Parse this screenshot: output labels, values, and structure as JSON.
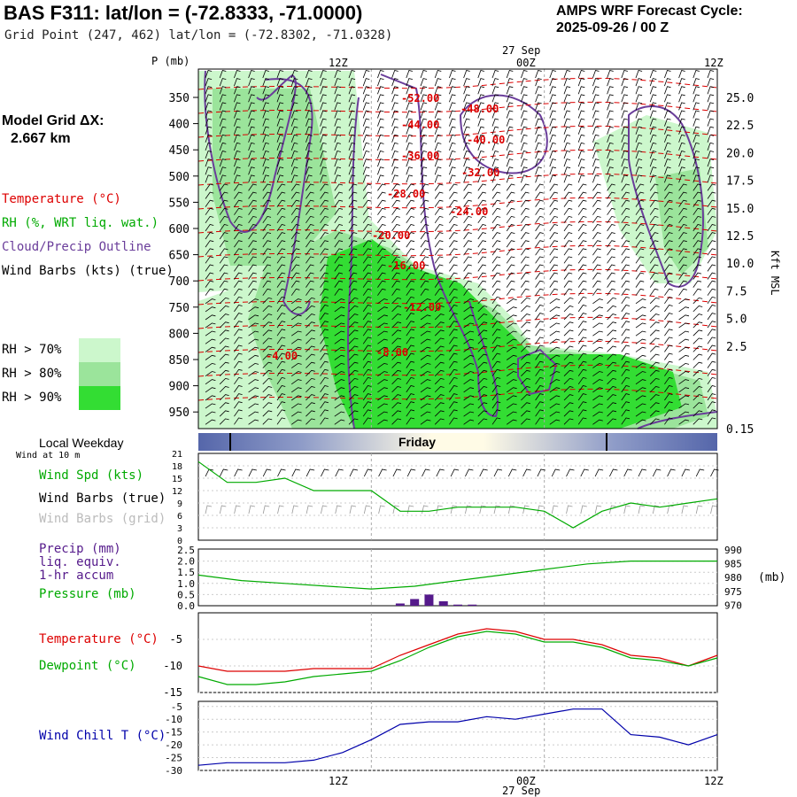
{
  "header": {
    "title": "BAS F311:  lat/lon = (-72.8333, -71.0000)",
    "subtitle": "Grid Point (247, 462) lat/lon = (-72.8302, -71.0328)",
    "forecast_line1": "AMPS WRF Forecast Cycle:",
    "forecast_line2": "2025-09-26 / 00  Z"
  },
  "legend": {
    "model_grid_line1": "Model Grid ΔX:",
    "model_grid_line2": "2.667 km",
    "temperature": "Temperature (°C)",
    "rh": "RH (%, WRT liq. wat.)",
    "cloud": "Cloud/Precip Outline",
    "wind_barbs": "Wind Barbs (kts) (true)",
    "rh70": "RH > 70%",
    "rh80": "RH > 80%",
    "rh90": "RH > 90%"
  },
  "colors": {
    "rh70": "#ccf7cc",
    "rh80": "#9be49b",
    "rh90": "#33dd33",
    "cloud": "#6a3d9a",
    "temp": "#dd0000",
    "green": "#00aa00",
    "purple": "#551a8b",
    "blue": "#0000aa",
    "grid_gray": "#aaaaaa"
  },
  "time_axis": {
    "date_label": "27 Sep",
    "ticks": [
      "12Z",
      "00Z",
      "12Z"
    ],
    "weekday_label": "Local Weekday",
    "weekday": "Friday"
  },
  "cross_section": {
    "pressure_label": "P (mb)",
    "pressure_ticks": [
      "350",
      "400",
      "450",
      "500",
      "550",
      "600",
      "650",
      "700",
      "750",
      "800",
      "850",
      "900",
      "950"
    ],
    "height_ticks": [
      "25.0",
      "22.5",
      "20.0",
      "17.5",
      "15.0",
      "12.5",
      "10.0",
      "7.5",
      "5.0",
      "2.5",
      "0.15"
    ],
    "height_label": "Kft MSL",
    "isotherms": [
      "-52.00",
      "-48.00",
      "-44.00",
      "-40.00",
      "-36.00",
      "-32.00",
      "-28.00",
      "-24.00",
      "-20.00",
      "-16.00",
      "-12.00",
      "-8.00",
      "-4.00"
    ]
  },
  "wind_panel": {
    "wind_at": "Wind at 10 m",
    "spd_label": "Wind Spd (kts)",
    "barbs_true": "Wind Barbs (true)",
    "barbs_grid": "Wind Barbs (grid)",
    "y_ticks": [
      "21",
      "18",
      "15",
      "12",
      "9",
      "6",
      "3",
      "0"
    ]
  },
  "precip_panel": {
    "precip_l1": "Precip (mm)",
    "precip_l2": "liq. equiv.",
    "precip_l3": "1-hr accum",
    "pressure": "Pressure (mb)",
    "left_ticks": [
      "2.5",
      "2.0",
      "1.5",
      "1.0",
      "0.5",
      "0.0"
    ],
    "right_ticks": [
      "990",
      "985",
      "980",
      "975",
      "970"
    ],
    "right_unit": "(mb)"
  },
  "temp_panel": {
    "temp_label": "Temperature (°C)",
    "dew_label": "Dewpoint (°C)",
    "y_ticks": [
      "-5",
      "-10",
      "-15"
    ]
  },
  "chill_panel": {
    "label": "Wind Chill T (°C)",
    "y_ticks": [
      "-5",
      "-10",
      "-15",
      "-20",
      "-25",
      "-30"
    ]
  },
  "chart_data": [
    {
      "type": "line",
      "name": "10 m wind speed",
      "x_hours": [
        0,
        2,
        4,
        6,
        8,
        10,
        12,
        14,
        16,
        18,
        20,
        22,
        24,
        26,
        28,
        30,
        32,
        34,
        36
      ],
      "values": [
        19,
        14,
        14,
        15,
        12,
        12,
        12,
        7,
        7,
        8,
        8,
        8,
        7,
        3,
        7,
        9,
        8,
        9,
        10
      ],
      "ylim": [
        0,
        21
      ]
    },
    {
      "type": "line",
      "name": "pressure",
      "x_hours": [
        0,
        3,
        6,
        9,
        12,
        15,
        18,
        21,
        24,
        27,
        30,
        33,
        36
      ],
      "values": [
        981,
        979,
        978,
        977,
        976,
        977,
        979,
        981,
        983,
        985,
        986,
        986,
        986
      ],
      "ylim": [
        970,
        990
      ]
    },
    {
      "type": "bar",
      "name": "precip",
      "x_hours": [
        14,
        15,
        16,
        17,
        18,
        19
      ],
      "values": [
        0.1,
        0.3,
        0.5,
        0.2,
        0.05,
        0.05
      ]
    },
    {
      "type": "line",
      "series": [
        {
          "name": "Temperature",
          "x_hours": [
            0,
            2,
            4,
            6,
            8,
            10,
            12,
            14,
            16,
            18,
            20,
            22,
            24,
            26,
            28,
            30,
            32,
            34,
            36
          ],
          "values": [
            -10,
            -11,
            -11,
            -11,
            -10.5,
            -10.5,
            -10.5,
            -8,
            -6,
            -4,
            -3,
            -3.5,
            -5,
            -5,
            -6,
            -8,
            -8.5,
            -10,
            -8
          ]
        },
        {
          "name": "Dewpoint",
          "x_hours": [
            0,
            2,
            4,
            6,
            8,
            10,
            12,
            14,
            16,
            18,
            20,
            22,
            24,
            26,
            28,
            30,
            32,
            34,
            36
          ],
          "values": [
            -12,
            -13.5,
            -13.5,
            -13,
            -12,
            -11.5,
            -11,
            -9,
            -6.5,
            -4.5,
            -3.5,
            -4,
            -5.5,
            -5.5,
            -6.5,
            -8.5,
            -9,
            -10,
            -8.5
          ]
        }
      ],
      "ylim": [
        -15,
        0
      ]
    },
    {
      "type": "line",
      "name": "wind chill",
      "x_hours": [
        0,
        2,
        4,
        6,
        8,
        10,
        12,
        14,
        16,
        18,
        20,
        22,
        24,
        26,
        28,
        30,
        32,
        34,
        36
      ],
      "values": [
        -28,
        -27,
        -27,
        -27,
        -26,
        -23,
        -18,
        -12,
        -11,
        -11,
        -9,
        -10,
        -8,
        -6,
        -6,
        -16,
        -17,
        -20,
        -16
      ],
      "ylim": [
        -30,
        -3
      ]
    }
  ]
}
